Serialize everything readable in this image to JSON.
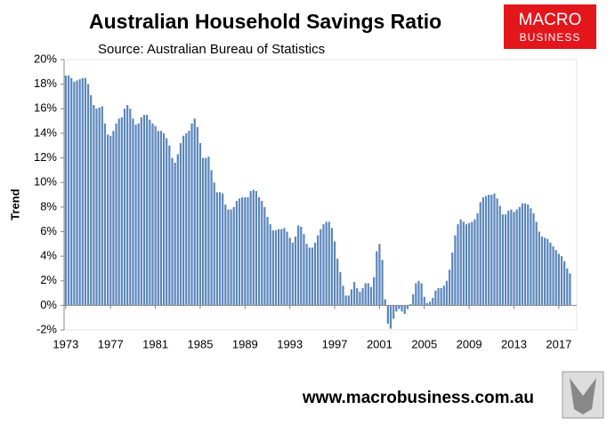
{
  "chart_data": {
    "type": "bar",
    "title": "Australian Household Savings Ratio",
    "subtitle": "Source: Australian Bureau of Statistics",
    "y_label": "Trend",
    "logo": [
      "MACRO",
      "BUSINESS"
    ],
    "footer": "www.macrobusiness.com.au",
    "color": "#5b86bc",
    "x": [
      1973,
      1973.25,
      1973.5,
      1973.75,
      1974,
      1974.25,
      1974.5,
      1974.75,
      1975,
      1975.25,
      1975.5,
      1975.75,
      1976,
      1976.25,
      1976.5,
      1976.75,
      1977,
      1977.25,
      1977.5,
      1977.75,
      1978,
      1978.25,
      1978.5,
      1978.75,
      1979,
      1979.25,
      1979.5,
      1979.75,
      1980,
      1980.25,
      1980.5,
      1980.75,
      1981,
      1981.25,
      1981.5,
      1981.75,
      1982,
      1982.25,
      1982.5,
      1982.75,
      1983,
      1983.25,
      1983.5,
      1983.75,
      1984,
      1984.25,
      1984.5,
      1984.75,
      1985,
      1985.25,
      1985.5,
      1985.75,
      1986,
      1986.25,
      1986.5,
      1986.75,
      1987,
      1987.25,
      1987.5,
      1987.75,
      1988,
      1988.25,
      1988.5,
      1988.75,
      1989,
      1989.25,
      1989.5,
      1989.75,
      1990,
      1990.25,
      1990.5,
      1990.75,
      1991,
      1991.25,
      1991.5,
      1991.75,
      1992,
      1992.25,
      1992.5,
      1992.75,
      1993,
      1993.25,
      1993.5,
      1993.75,
      1994,
      1994.25,
      1994.5,
      1994.75,
      1995,
      1995.25,
      1995.5,
      1995.75,
      1996,
      1996.25,
      1996.5,
      1996.75,
      1997,
      1997.25,
      1997.5,
      1997.75,
      1998,
      1998.25,
      1998.5,
      1998.75,
      1999,
      1999.25,
      1999.5,
      1999.75,
      2000,
      2000.25,
      2000.5,
      2000.75,
      2001,
      2001.25,
      2001.5,
      2001.75,
      2002,
      2002.25,
      2002.5,
      2002.75,
      2003,
      2003.25,
      2003.5,
      2003.75,
      2004,
      2004.25,
      2004.5,
      2004.75,
      2005,
      2005.25,
      2005.5,
      2005.75,
      2006,
      2006.25,
      2006.5,
      2006.75,
      2007,
      2007.25,
      2007.5,
      2007.75,
      2008,
      2008.25,
      2008.5,
      2008.75,
      2009,
      2009.25,
      2009.5,
      2009.75,
      2010,
      2010.25,
      2010.5,
      2010.75,
      2011,
      2011.25,
      2011.5,
      2011.75,
      2012,
      2012.25,
      2012.5,
      2012.75,
      2013,
      2013.25,
      2013.5,
      2013.75,
      2014,
      2014.25,
      2014.5,
      2014.75,
      2015,
      2015.25,
      2015.5,
      2015.75,
      2016,
      2016.25,
      2016.5,
      2016.75,
      2017,
      2017.25,
      2017.5,
      2017.75,
      2018
    ],
    "values": [
      18.7,
      18.7,
      18.5,
      18.2,
      18.3,
      18.4,
      18.5,
      18.5,
      18.0,
      17.1,
      16.3,
      16.0,
      16.1,
      16.2,
      14.8,
      13.9,
      13.8,
      14.2,
      14.8,
      15.2,
      15.3,
      16.0,
      16.3,
      16.0,
      15.2,
      14.7,
      14.8,
      15.3,
      15.5,
      15.5,
      15.1,
      14.8,
      14.6,
      14.2,
      14.2,
      14.0,
      13.6,
      13.0,
      12.0,
      11.6,
      12.3,
      13.2,
      13.8,
      14.0,
      14.2,
      14.8,
      15.2,
      14.5,
      13.2,
      12.0,
      12.0,
      12.1,
      11.0,
      10.0,
      9.2,
      9.2,
      9.1,
      8.2,
      7.8,
      7.8,
      8.0,
      8.5,
      8.7,
      8.8,
      8.8,
      8.8,
      9.3,
      9.4,
      9.3,
      8.8,
      8.5,
      8.0,
      7.2,
      6.6,
      6.1,
      6.1,
      6.2,
      6.2,
      6.3,
      6.0,
      5.5,
      5.1,
      5.6,
      6.5,
      6.4,
      5.8,
      5.0,
      4.7,
      4.7,
      5.1,
      5.7,
      6.2,
      6.6,
      6.8,
      6.8,
      6.3,
      5.2,
      3.8,
      2.7,
      1.6,
      0.8,
      0.8,
      1.3,
      1.9,
      1.4,
      1.1,
      1.4,
      1.8,
      1.8,
      1.5,
      2.3,
      4.4,
      5.0,
      3.7,
      0.5,
      -1.5,
      -1.9,
      -1.1,
      -0.5,
      -0.3,
      -0.5,
      -0.7,
      -0.3,
      0.1,
      0.9,
      1.8,
      2.0,
      1.8,
      0.7,
      0.2,
      0.3,
      0.6,
      1.2,
      1.4,
      1.4,
      1.6,
      2.0,
      2.9,
      4.3,
      5.7,
      6.6,
      7.0,
      6.8,
      6.6,
      6.7,
      6.8,
      7.0,
      7.5,
      8.4,
      8.8,
      8.9,
      9.0,
      9.0,
      9.1,
      8.7,
      8.1,
      7.4,
      7.4,
      7.7,
      7.8,
      7.6,
      7.8,
      8.0,
      8.3,
      8.3,
      8.2,
      7.9,
      7.5,
      6.8,
      6.0,
      5.6,
      5.5,
      5.4,
      5.1,
      4.8,
      4.5,
      4.2,
      4.0,
      3.6,
      3.0,
      2.6
    ],
    "xlim": [
      1972.85,
      2018.6
    ],
    "xticks": [
      1973,
      1977,
      1981,
      1985,
      1989,
      1993,
      1997,
      2001,
      2005,
      2009,
      2013,
      2017
    ],
    "ylim": [
      -2,
      20
    ],
    "yticks": [
      {
        "value": -2,
        "label": "-2%"
      },
      {
        "value": 0,
        "label": "0%"
      },
      {
        "value": 2,
        "label": "2%"
      },
      {
        "value": 4,
        "label": "4%"
      },
      {
        "value": 6,
        "label": "6%"
      },
      {
        "value": 8,
        "label": "8%"
      },
      {
        "value": 10,
        "label": "10%"
      },
      {
        "value": 12,
        "label": "12%"
      },
      {
        "value": 14,
        "label": "14%"
      },
      {
        "value": 16,
        "label": "16%"
      },
      {
        "value": 18,
        "label": "18%"
      },
      {
        "value": 20,
        "label": "20%"
      }
    ]
  }
}
